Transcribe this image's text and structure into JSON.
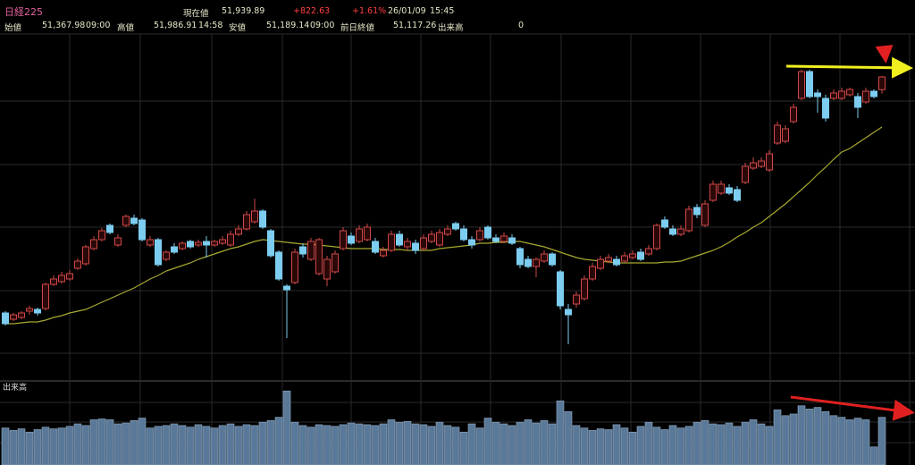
{
  "header": {
    "title": "日経225",
    "current_label": "現在値",
    "current": "51,939.89",
    "change": "+822.63",
    "change_pct": "+1.61%",
    "date": "26/01/09",
    "time": "15:45",
    "open_label": "始値",
    "open": "51,367.98",
    "open_time": "09:00",
    "high_label": "高値",
    "high": "51,986.91",
    "high_time": "14:58",
    "low_label": "安値",
    "low": "51,189.14",
    "low_time": "09:00",
    "prev_close_label": "前日終値",
    "prev_close": "51,117.26",
    "volume_label": "出来高",
    "volume": "0"
  },
  "chart_data": {
    "type": "candlestick",
    "up_color": "#d04848",
    "up_fill": "#2a0808",
    "down_color": "#7ccdf0",
    "ylim": [
      38380,
      53860
    ],
    "open": [
      41380,
      41100,
      41180,
      41460,
      41540,
      41580,
      42660,
      42780,
      42900,
      43380,
      43580,
      44260,
      44660,
      45300,
      44420,
      45300,
      45620,
      45540,
      44420,
      44660,
      43780,
      44340,
      44260,
      44580,
      44420,
      44580,
      44420,
      44500,
      44420,
      44900,
      45140,
      45460,
      45940,
      45060,
      44100,
      42580,
      42740,
      44340,
      43780,
      43140,
      42900,
      43220,
      44260,
      44820,
      44580,
      44660,
      44580,
      43940,
      44180,
      44900,
      44340,
      44500,
      44260,
      44580,
      44420,
      44900,
      45380,
      45140,
      44660,
      44660,
      45220,
      44740,
      44580,
      44740,
      44260,
      43780,
      43460,
      43700,
      44020,
      43220,
      41540,
      41780,
      42020,
      42900,
      43380,
      43700,
      43780,
      43700,
      43860,
      44100,
      44020,
      44260,
      45540,
      45140,
      44900,
      45060,
      46100,
      45300,
      46420,
      46740,
      46980,
      46900,
      47220,
      47860,
      47940,
      47780,
      48980,
      49060,
      49940,
      50980,
      52180,
      51220,
      50980,
      50980,
      50980,
      51140,
      51060,
      50820,
      51300,
      51367.98
    ],
    "high": [
      41460,
      41380,
      41460,
      41700,
      41620,
      42740,
      43060,
      43220,
      43300,
      43820,
      44420,
      44820,
      45180,
      45380,
      44900,
      45780,
      45780,
      45620,
      44820,
      44740,
      44180,
      44500,
      44580,
      44660,
      44660,
      44820,
      44660,
      44820,
      45060,
      45300,
      45940,
      46500,
      46020,
      45140,
      44180,
      42660,
      44260,
      44500,
      44740,
      44740,
      43940,
      44180,
      45220,
      44980,
      45300,
      45380,
      44740,
      44340,
      45060,
      45060,
      44740,
      44660,
      44900,
      45060,
      45140,
      45300,
      45460,
      45300,
      44820,
      45220,
      45300,
      44900,
      44980,
      44900,
      44340,
      43940,
      43860,
      44180,
      44100,
      43300,
      41780,
      42340,
      43060,
      43620,
      43940,
      44020,
      43940,
      44100,
      44180,
      44260,
      44420,
      45380,
      45700,
      45300,
      45300,
      46180,
      46260,
      46420,
      47300,
      47300,
      47140,
      47060,
      48100,
      48340,
      48340,
      48660,
      49940,
      49780,
      50740,
      52260,
      52260,
      51380,
      51140,
      51380,
      51460,
      51460,
      51220,
      51460,
      51380,
      51986.91
    ],
    "low": [
      40820,
      41020,
      41100,
      41300,
      41260,
      41500,
      42580,
      42700,
      42820,
      43300,
      43500,
      44180,
      44580,
      44900,
      44340,
      45220,
      45300,
      44580,
      44340,
      43460,
      43700,
      44020,
      44180,
      44260,
      44340,
      43860,
      44340,
      44420,
      44340,
      44820,
      45060,
      45380,
      45140,
      43860,
      42820,
      40260,
      42660,
      43860,
      43700,
      43060,
      42580,
      43140,
      44180,
      44420,
      44500,
      44580,
      44020,
      43860,
      44100,
      44340,
      44180,
      44020,
      44180,
      44500,
      44340,
      44820,
      45060,
      44580,
      44260,
      44580,
      44660,
      44500,
      44500,
      44420,
      43380,
      43380,
      42980,
      43620,
      43460,
      41540,
      39980,
      41620,
      41940,
      42820,
      43300,
      43620,
      43460,
      43620,
      43780,
      43700,
      43940,
      44180,
      45140,
      44820,
      44820,
      44980,
      45620,
      45220,
      46340,
      46660,
      46660,
      46340,
      47140,
      47780,
      47860,
      47700,
      48900,
      48980,
      49860,
      50900,
      50980,
      50340,
      49940,
      50900,
      50900,
      51060,
      50100,
      50740,
      50980,
      51189.14
    ],
    "close": [
      40900,
      41300,
      41380,
      41580,
      41380,
      42660,
      42900,
      43060,
      43140,
      43700,
      44340,
      44660,
      45060,
      44980,
      44740,
      45700,
      45380,
      44660,
      44660,
      43540,
      44100,
      44100,
      44500,
      44340,
      44540,
      44420,
      44580,
      44660,
      44900,
      45140,
      45780,
      45940,
      45220,
      43940,
      42900,
      42420,
      44100,
      44020,
      44580,
      44660,
      43780,
      44020,
      45060,
      44500,
      45140,
      45220,
      44100,
      44180,
      44900,
      44420,
      44580,
      44180,
      44740,
      44900,
      44980,
      45140,
      45140,
      44660,
      44420,
      45060,
      44740,
      44580,
      44820,
      44500,
      43540,
      43460,
      43780,
      44020,
      43540,
      41700,
      41300,
      42180,
      42900,
      43460,
      43780,
      43860,
      43540,
      43940,
      44020,
      43780,
      44260,
      45300,
      45220,
      44900,
      45140,
      46020,
      45780,
      46260,
      47140,
      47140,
      46740,
      46420,
      47940,
      48100,
      48180,
      48500,
      49780,
      49620,
      50580,
      52180,
      51060,
      51060,
      50100,
      51220,
      51300,
      51380,
      50580,
      51300,
      51060,
      51939.89
    ],
    "moving_average": {
      "color": "#a8a830",
      "values": [
        40900,
        40900,
        40940,
        40980,
        40980,
        41060,
        41180,
        41260,
        41380,
        41460,
        41540,
        41700,
        41860,
        42020,
        42180,
        42340,
        42500,
        42700,
        42900,
        43060,
        43260,
        43380,
        43500,
        43620,
        43780,
        43900,
        44020,
        44140,
        44260,
        44340,
        44460,
        44580,
        44660,
        44620,
        44580,
        44540,
        44500,
        44460,
        44460,
        44420,
        44380,
        44340,
        44300,
        44260,
        44260,
        44260,
        44260,
        44220,
        44220,
        44220,
        44180,
        44180,
        44180,
        44180,
        44260,
        44300,
        44340,
        44380,
        44420,
        44500,
        44500,
        44540,
        44540,
        44580,
        44580,
        44500,
        44420,
        44340,
        44220,
        44100,
        43980,
        43860,
        43780,
        43740,
        43700,
        43660,
        43620,
        43620,
        43620,
        43620,
        43620,
        43620,
        43660,
        43660,
        43700,
        43820,
        43940,
        44060,
        44180,
        44340,
        44540,
        44780,
        44980,
        45220,
        45420,
        45700,
        45980,
        46260,
        46580,
        46900,
        47220,
        47580,
        47900,
        48260,
        48580,
        48740,
        48980,
        49220,
        49460,
        49700
      ]
    },
    "volume": {
      "label": "出来高",
      "color": "#5a7898",
      "ylim": [
        0,
        100
      ],
      "values": [
        45,
        42,
        44,
        40,
        43,
        46,
        44,
        45,
        47,
        50,
        48,
        55,
        56,
        55,
        50,
        51,
        54,
        57,
        45,
        47,
        48,
        50,
        48,
        46,
        49,
        47,
        45,
        48,
        50,
        47,
        49,
        48,
        52,
        54,
        58,
        90,
        52,
        48,
        46,
        49,
        48,
        47,
        49,
        51,
        50,
        49,
        48,
        50,
        55,
        52,
        53,
        50,
        49,
        47,
        52,
        48,
        46,
        40,
        50,
        45,
        57,
        52,
        50,
        48,
        52,
        55,
        51,
        54,
        50,
        78,
        65,
        48,
        45,
        42,
        44,
        43,
        49,
        45,
        40,
        47,
        52,
        46,
        43,
        48,
        45,
        47,
        52,
        54,
        50,
        49,
        51,
        47,
        52,
        55,
        50,
        47,
        67,
        60,
        62,
        72,
        68,
        70,
        65,
        60,
        58,
        55,
        57,
        55,
        22,
        58
      ]
    }
  }
}
